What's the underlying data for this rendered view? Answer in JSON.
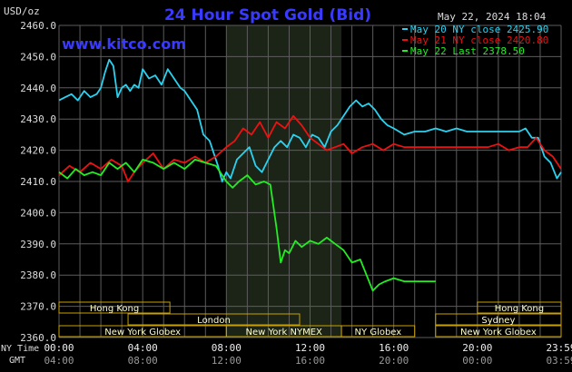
{
  "header": {
    "title": "24 Hour Spot Gold (Bid)",
    "unit": "USD/oz",
    "timestamp": "May 22, 2024 18:04",
    "brand": "www.kitco.com"
  },
  "colors": {
    "title": "#3a3aff",
    "brand": "#3a3aff",
    "may20": "#2ad2f0",
    "may21": "#ee1111",
    "may22": "#22ee22",
    "grid": "#5c5c5c",
    "shade": "#1c2418",
    "band_fill": "#ffffcc",
    "band_border": "#c8a000"
  },
  "chart_data": {
    "type": "line",
    "title": "24 Hour Spot Gold (Bid)",
    "ylabel": "USD/oz",
    "ylim": [
      2360,
      2460
    ],
    "xlim": [
      0,
      24
    ],
    "grid": true,
    "legend_position": "top-right",
    "yticks": [
      "2460.0",
      "2450.0",
      "2440.0",
      "2430.0",
      "2420.0",
      "2410.0",
      "2400.0",
      "2390.0",
      "2380.0",
      "2370.0",
      "2360.0"
    ],
    "ytick_values": [
      2460,
      2450,
      2440,
      2430,
      2420,
      2410,
      2400,
      2390,
      2380,
      2370,
      2360
    ],
    "xticks_ny": [
      "00:00",
      "04:00",
      "08:00",
      "12:00",
      "16:00",
      "20:00",
      "23:59"
    ],
    "xticks_gmt": [
      "04:00",
      "08:00",
      "12:00",
      "16:00",
      "20:00",
      "00:00",
      "03:59"
    ],
    "xtick_hours": [
      0,
      4,
      8,
      12,
      16,
      20,
      24
    ],
    "xrow_label_ny": "NY Time",
    "xrow_label_gmt": "GMT",
    "shaded_session_hours": [
      8.0,
      13.5
    ],
    "series": [
      {
        "name": "May 20 NY close 2425.90",
        "color": "#2ad2f0",
        "x": [
          0,
          0.3,
          0.6,
          0.9,
          1.2,
          1.5,
          1.8,
          2.0,
          2.2,
          2.4,
          2.6,
          2.8,
          3.0,
          3.2,
          3.4,
          3.6,
          3.8,
          4.0,
          4.3,
          4.6,
          4.9,
          5.2,
          5.5,
          5.8,
          6.0,
          6.3,
          6.6,
          6.9,
          7.2,
          7.4,
          7.6,
          7.8,
          8.0,
          8.2,
          8.5,
          8.8,
          9.1,
          9.4,
          9.7,
          10.0,
          10.3,
          10.6,
          10.9,
          11.2,
          11.5,
          11.8,
          12.1,
          12.4,
          12.7,
          13.0,
          13.3,
          13.6,
          13.9,
          14.2,
          14.5,
          14.8,
          15.1,
          15.4,
          15.7,
          16.0,
          16.5,
          17.0,
          17.5,
          18.0,
          18.5,
          19.0,
          19.5,
          20.0,
          20.5,
          21.0,
          21.5,
          22.0,
          22.3,
          22.6,
          22.9,
          23.2,
          23.5,
          23.8,
          24.0
        ],
        "y": [
          2436,
          2437,
          2438,
          2436,
          2439,
          2437,
          2438,
          2440,
          2445,
          2449,
          2447,
          2437,
          2440,
          2441,
          2439,
          2441,
          2440,
          2446,
          2443,
          2444,
          2441,
          2446,
          2443,
          2440,
          2439,
          2436,
          2433,
          2425,
          2423,
          2419,
          2415,
          2410,
          2413,
          2411,
          2417,
          2419,
          2421,
          2415,
          2413,
          2417,
          2421,
          2423,
          2421,
          2425,
          2424,
          2421,
          2425,
          2424,
          2421,
          2426,
          2428,
          2431,
          2434,
          2436,
          2434,
          2435,
          2433,
          2430,
          2428,
          2427,
          2425,
          2426,
          2426,
          2427,
          2426,
          2427,
          2426,
          2426,
          2426,
          2426,
          2426,
          2426,
          2427,
          2424,
          2424,
          2418,
          2416,
          2411,
          2413
        ]
      },
      {
        "name": "May 21 NY close 2420.80",
        "color": "#ee1111",
        "x": [
          0,
          0.5,
          1.0,
          1.5,
          2.0,
          2.5,
          3.0,
          3.3,
          3.6,
          4.0,
          4.5,
          5.0,
          5.5,
          6.0,
          6.5,
          7.0,
          7.5,
          8.0,
          8.4,
          8.8,
          9.2,
          9.6,
          10.0,
          10.4,
          10.8,
          11.2,
          11.6,
          12.0,
          12.4,
          12.8,
          13.2,
          13.6,
          14.0,
          14.5,
          15.0,
          15.5,
          16.0,
          16.5,
          17.0,
          17.5,
          18.0,
          18.5,
          19.0,
          19.5,
          20.0,
          20.5,
          21.0,
          21.5,
          22.0,
          22.4,
          22.8,
          23.2,
          23.6,
          24.0
        ],
        "y": [
          2412,
          2415,
          2413,
          2416,
          2414,
          2417,
          2415,
          2410,
          2413,
          2416,
          2419,
          2414,
          2417,
          2416,
          2418,
          2416,
          2418,
          2421,
          2423,
          2427,
          2425,
          2429,
          2424,
          2429,
          2427,
          2431,
          2428,
          2424,
          2422,
          2420,
          2421,
          2422,
          2419,
          2421,
          2422,
          2420,
          2422,
          2421,
          2421,
          2421,
          2421,
          2421,
          2421,
          2421,
          2421,
          2421,
          2422,
          2420,
          2421,
          2421,
          2424,
          2420,
          2418,
          2414
        ]
      },
      {
        "name": "May 22 Last 2378.50",
        "color": "#22ee22",
        "x": [
          0,
          0.4,
          0.8,
          1.2,
          1.6,
          2.0,
          2.4,
          2.8,
          3.2,
          3.6,
          4.0,
          4.5,
          5.0,
          5.5,
          6.0,
          6.5,
          7.0,
          7.5,
          8.0,
          8.3,
          8.6,
          9.0,
          9.4,
          9.8,
          10.1,
          10.4,
          10.6,
          10.8,
          11.0,
          11.3,
          11.6,
          12.0,
          12.4,
          12.8,
          13.2,
          13.6,
          14.0,
          14.4,
          14.7,
          15.0,
          15.3,
          15.6,
          16.0,
          16.5,
          17.0,
          17.5,
          18.0
        ],
        "y": [
          2413,
          2411,
          2414,
          2412,
          2413,
          2412,
          2416,
          2414,
          2416,
          2413,
          2417,
          2416,
          2414,
          2416,
          2414,
          2417,
          2416,
          2415,
          2410,
          2408,
          2410,
          2412,
          2409,
          2410,
          2409,
          2395,
          2384,
          2388,
          2387,
          2391,
          2389,
          2391,
          2390,
          2392,
          2390,
          2388,
          2384,
          2385,
          2380,
          2375,
          2377,
          2378,
          2379,
          2378,
          2378,
          2378,
          2378
        ]
      }
    ]
  },
  "sessions": [
    {
      "label": "Hong Kong",
      "start": 0.0,
      "end": 5.3,
      "row": 0
    },
    {
      "label": "London",
      "start": 3.3,
      "end": 11.5,
      "row": 1
    },
    {
      "label": "New York Globex",
      "start": 0.0,
      "end": 8.0,
      "row": 2
    },
    {
      "label": "New York NYMEX",
      "start": 8.0,
      "end": 13.5,
      "row": 2
    },
    {
      "label": "NY Globex",
      "start": 13.5,
      "end": 17.0,
      "row": 2
    },
    {
      "label": "New York Globex",
      "start": 18.0,
      "end": 24.0,
      "row": 2
    },
    {
      "label": "Sydney",
      "start": 18.0,
      "end": 24.0,
      "row": 1
    },
    {
      "label": "Hong Kong",
      "start": 20.0,
      "end": 24.0,
      "row": 0
    }
  ]
}
